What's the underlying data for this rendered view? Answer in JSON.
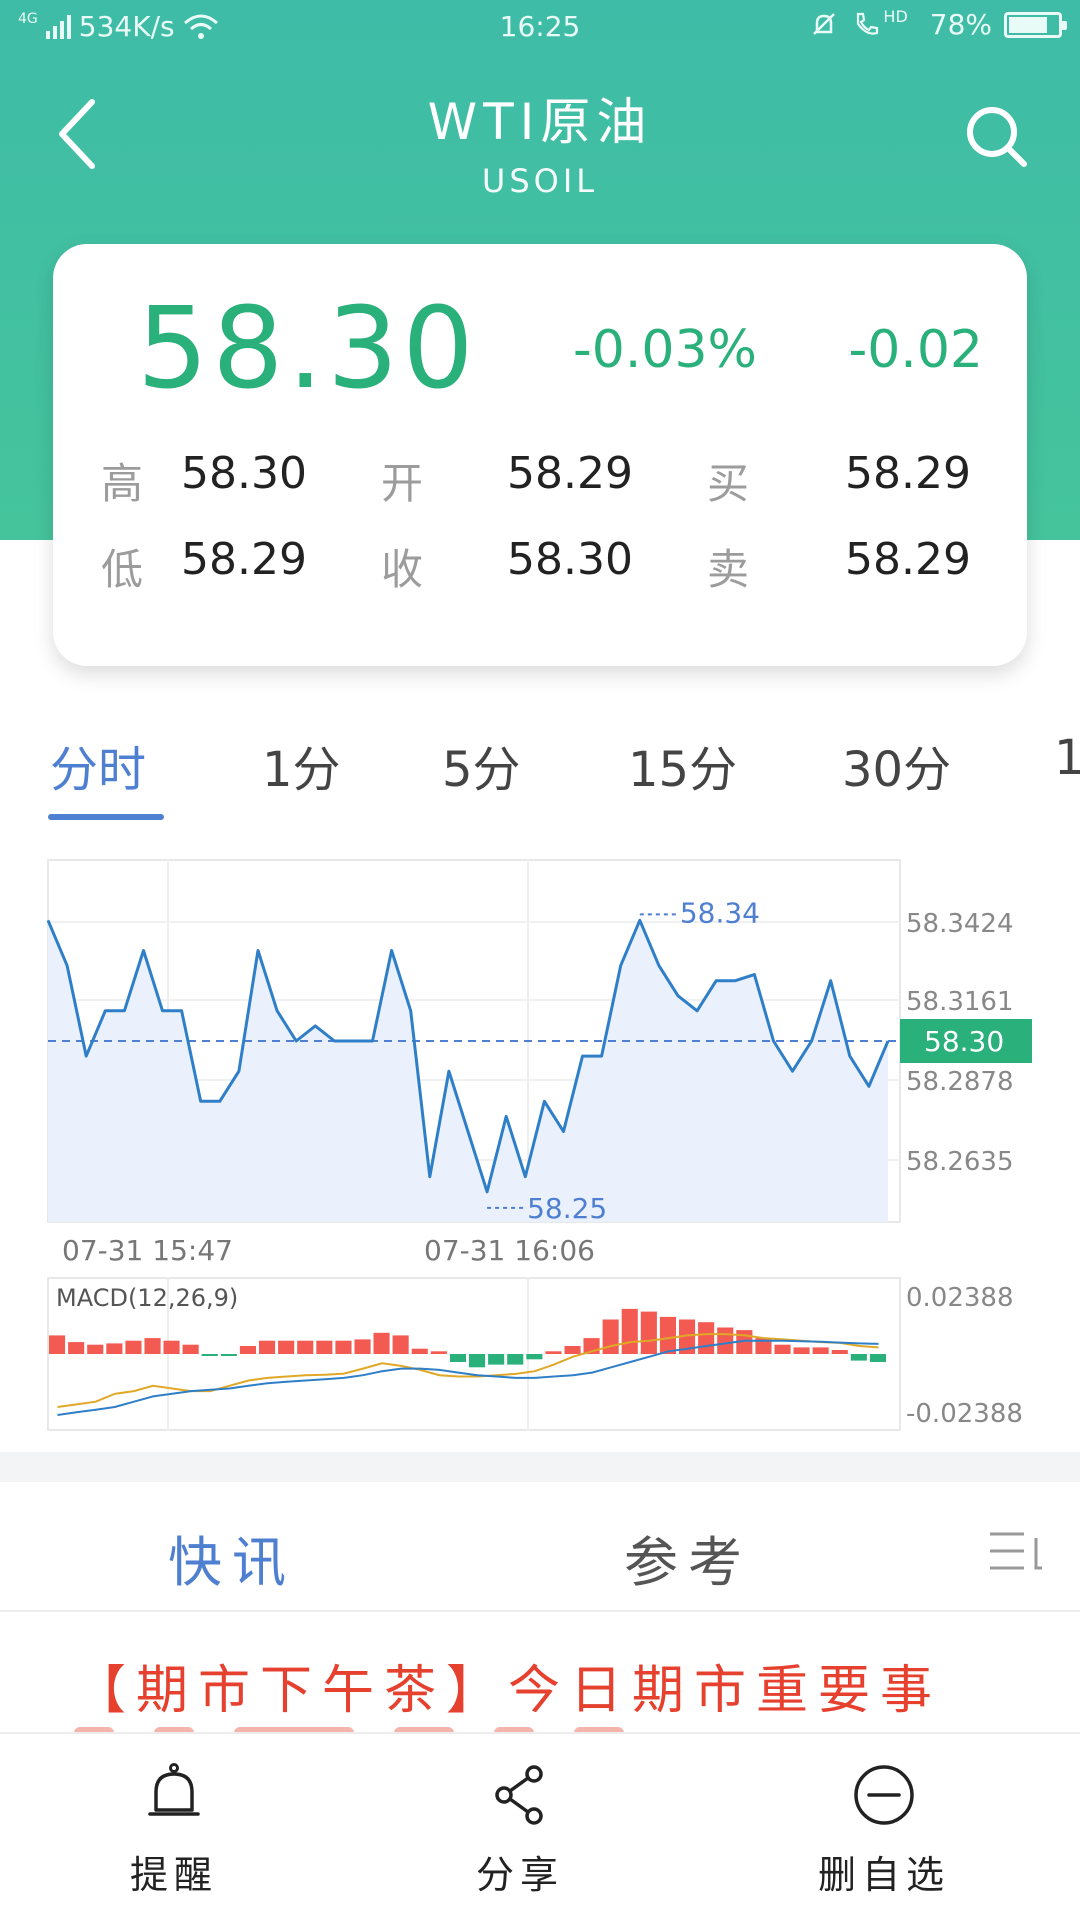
{
  "status_bar": {
    "network": "4G",
    "speed": "534K/s",
    "time": "16:25",
    "hd": "HD",
    "battery": "78%"
  },
  "header": {
    "title": "WTI原油",
    "subtitle": "USOIL"
  },
  "quote": {
    "price": "58.30",
    "change_pct": "-0.03%",
    "change": "-0.02",
    "high_label": "高",
    "high": "58.30",
    "open_label": "开",
    "open": "58.29",
    "bid_label": "买",
    "bid": "58.29",
    "low_label": "低",
    "low": "58.29",
    "close_label": "收",
    "close": "58.30",
    "ask_label": "卖",
    "ask": "58.29"
  },
  "period_tabs": [
    "分时",
    "1分",
    "5分",
    "15分",
    "30分",
    "1"
  ],
  "colors": {
    "accent": "#4e7fd0",
    "header": "#3fbca7",
    "up": "#2ab07a",
    "down_bar": "#f25a52",
    "news": "#e6402f"
  },
  "chart_data": [
    {
      "type": "line",
      "y_ticks": [
        "58.3424",
        "58.3161",
        "58.2878",
        "58.2635"
      ],
      "ylim": [
        58.24,
        58.36
      ],
      "x_labels": [
        "07-31  15:47",
        "07-31  16:06"
      ],
      "current_value": "58.30",
      "current_level": 58.3,
      "max_marker": "58.34",
      "max_level": 58.34,
      "max_index": 31,
      "min_marker": "58.25",
      "min_level": 58.25,
      "min_index": 23,
      "values": [
        58.34,
        58.325,
        58.295,
        58.31,
        58.31,
        58.33,
        58.31,
        58.31,
        58.28,
        58.28,
        58.29,
        58.33,
        58.31,
        58.3,
        58.305,
        58.3,
        58.3,
        58.3,
        58.33,
        58.31,
        58.255,
        58.29,
        58.27,
        58.25,
        58.275,
        58.255,
        58.28,
        58.27,
        58.295,
        58.295,
        58.325,
        58.34,
        58.325,
        58.315,
        58.31,
        58.32,
        58.32,
        58.322,
        58.3,
        58.29,
        58.3,
        58.32,
        58.295,
        58.285,
        58.3
      ]
    },
    {
      "type": "bar",
      "title": "MACD(12,26,9)",
      "y_ticks": [
        "0.02388",
        "-0.02388"
      ],
      "ylim": [
        -0.02388,
        0.02388
      ],
      "histogram": [
        0.007,
        0.0045,
        0.0035,
        0.004,
        0.005,
        0.006,
        0.005,
        0.0035,
        -0.0005,
        -0.0005,
        0.003,
        0.005,
        0.005,
        0.005,
        0.005,
        0.005,
        0.0055,
        0.008,
        0.007,
        0.002,
        0.001,
        -0.003,
        -0.005,
        -0.004,
        -0.004,
        -0.002,
        0.001,
        0.003,
        0.006,
        0.013,
        0.017,
        0.016,
        0.014,
        0.013,
        0.012,
        0.01,
        0.009,
        0.006,
        0.0035,
        0.0025,
        0.0025,
        0.0015,
        -0.0025,
        -0.003
      ],
      "dif": [
        -0.023,
        -0.022,
        -0.021,
        -0.02,
        -0.018,
        -0.016,
        -0.015,
        -0.014,
        -0.0135,
        -0.013,
        -0.012,
        -0.011,
        -0.0105,
        -0.01,
        -0.0095,
        -0.009,
        -0.008,
        -0.0065,
        -0.0055,
        -0.0055,
        -0.006,
        -0.007,
        -0.008,
        -0.0085,
        -0.009,
        -0.009,
        -0.0085,
        -0.008,
        -0.007,
        -0.005,
        -0.003,
        -0.001,
        0.001,
        0.002,
        0.003,
        0.004,
        0.005,
        0.005,
        0.005,
        0.0048,
        0.0046,
        0.0043,
        0.004,
        0.0038
      ],
      "dea": [
        -0.02,
        -0.019,
        -0.018,
        -0.015,
        -0.014,
        -0.012,
        -0.013,
        -0.014,
        -0.014,
        -0.012,
        -0.01,
        -0.009,
        -0.0085,
        -0.008,
        -0.0078,
        -0.0074,
        -0.0055,
        -0.0035,
        -0.0045,
        -0.006,
        -0.008,
        -0.0085,
        -0.0085,
        -0.008,
        -0.0075,
        -0.0065,
        -0.004,
        -0.001,
        0.001,
        0.003,
        0.0045,
        0.005,
        0.006,
        0.007,
        0.0075,
        0.0075,
        0.007,
        0.006,
        0.0055,
        0.005,
        0.0045,
        0.0042,
        0.003,
        0.0025
      ]
    }
  ],
  "news_tabs": {
    "flash": "快讯",
    "reference": "参考"
  },
  "news_headline": "【期市下午茶】今日期市重要事",
  "bottom_nav": {
    "remind": "提醒",
    "share": "分享",
    "remove": "删自选"
  }
}
